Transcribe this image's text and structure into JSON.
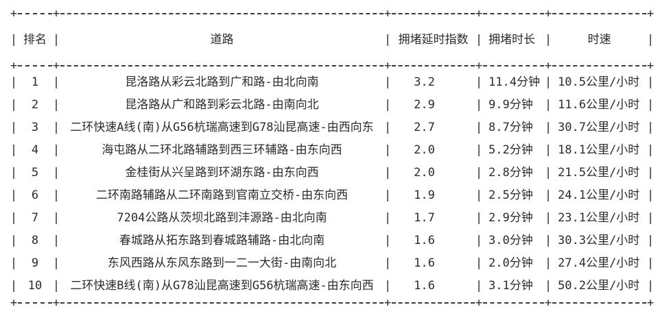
{
  "table": {
    "glyphs": {
      "vertical": "|",
      "junction": "+"
    },
    "colors": {
      "text": "#2b2b2b",
      "line": "#3a3a3a",
      "background": "#ffffff"
    },
    "columns": [
      {
        "key": "rank",
        "label": "排名"
      },
      {
        "key": "road",
        "label": "道路"
      },
      {
        "key": "index",
        "label": "拥堵延时指数"
      },
      {
        "key": "duration",
        "label": "拥堵时长"
      },
      {
        "key": "speed",
        "label": "时速"
      }
    ],
    "rows": [
      {
        "rank": "1",
        "road": "昆洛路从彩云北路到广和路-由北向南",
        "index": "3.2",
        "duration": "11.4分钟",
        "speed": "10.5公里/小时"
      },
      {
        "rank": "2",
        "road": "昆洛路从广和路到彩云北路-由南向北",
        "index": "2.9",
        "duration": "9.9分钟",
        "speed": "11.6公里/小时"
      },
      {
        "rank": "3",
        "road": "二环快速A线(南)从G56杭瑞高速到G78汕昆高速-由西向东",
        "index": "2.7",
        "duration": "8.7分钟",
        "speed": "30.7公里/小时"
      },
      {
        "rank": "4",
        "road": "海屯路从二环北路辅路到西三环辅路-由东向西",
        "index": "2.0",
        "duration": "5.2分钟",
        "speed": "18.1公里/小时"
      },
      {
        "rank": "5",
        "road": "金桂街从兴呈路到环湖东路-由东向西",
        "index": "2.0",
        "duration": "2.8分钟",
        "speed": "21.5公里/小时"
      },
      {
        "rank": "6",
        "road": "二环南路辅路从二环南路到官南立交桥-由东向西",
        "index": "1.9",
        "duration": "2.5分钟",
        "speed": "24.1公里/小时"
      },
      {
        "rank": "7",
        "road": "7204公路从茨坝北路到沣源路-由北向南",
        "index": "1.7",
        "duration": "2.9分钟",
        "speed": "23.1公里/小时"
      },
      {
        "rank": "8",
        "road": "春城路从拓东路到春城路辅路-由北向南",
        "index": "1.6",
        "duration": "3.0分钟",
        "speed": "30.3公里/小时"
      },
      {
        "rank": "9",
        "road": "东风西路从东风东路到一二一大街-由南向北",
        "index": "1.6",
        "duration": "2.0分钟",
        "speed": "27.4公里/小时"
      },
      {
        "rank": "10",
        "road": "二环快速B线(南)从G78汕昆高速到G56杭瑞高速-由东向西",
        "index": "1.6",
        "duration": "3.1分钟",
        "speed": "50.2公里/小时"
      }
    ]
  }
}
